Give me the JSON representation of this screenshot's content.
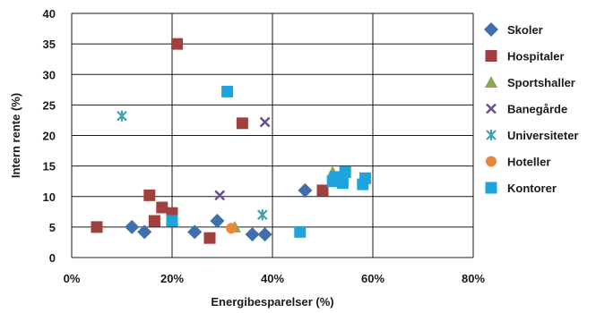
{
  "chart_data": {
    "type": "scatter",
    "xlabel": "Energibesparelser (%)",
    "ylabel": "Intern rente (%)",
    "xlim": [
      0,
      80
    ],
    "ylim": [
      0,
      40
    ],
    "x_ticks": [
      "0%",
      "20%",
      "40%",
      "60%",
      "80%"
    ],
    "y_ticks": [
      "0",
      "5",
      "10",
      "15",
      "20",
      "25",
      "30",
      "35",
      "40"
    ],
    "grid": true,
    "legend_position": "right",
    "series": [
      {
        "name": "Skoler",
        "marker": "diamond",
        "color": "#3f6fae",
        "points": [
          [
            12,
            5
          ],
          [
            14.5,
            4.2
          ],
          [
            24.5,
            4.2
          ],
          [
            29,
            6
          ],
          [
            36,
            3.8
          ],
          [
            38.5,
            3.8
          ],
          [
            46.5,
            11
          ]
        ]
      },
      {
        "name": "Hospitaler",
        "marker": "square",
        "color": "#a0413f",
        "points": [
          [
            5,
            5
          ],
          [
            15.5,
            10.2
          ],
          [
            16.5,
            6
          ],
          [
            18,
            8.2
          ],
          [
            20,
            7.3
          ],
          [
            21,
            35
          ],
          [
            27.5,
            3.2
          ],
          [
            34,
            22
          ],
          [
            50,
            11
          ]
        ]
      },
      {
        "name": "Sportshaller",
        "marker": "triangle",
        "color": "#8aa654",
        "points": [
          [
            32.5,
            5
          ],
          [
            52,
            14
          ]
        ]
      },
      {
        "name": "Banegårde",
        "marker": "x",
        "color": "#6b4f91",
        "points": [
          [
            29.5,
            10.2
          ],
          [
            38.5,
            22.2
          ]
        ]
      },
      {
        "name": "Universiteter",
        "marker": "asterisk",
        "color": "#3ba2ad",
        "points": [
          [
            10,
            23.2
          ],
          [
            38,
            7
          ]
        ]
      },
      {
        "name": "Hoteller",
        "marker": "circle",
        "color": "#e8893a",
        "points": [
          [
            31.8,
            4.8
          ]
        ]
      },
      {
        "name": "Kontorer",
        "marker": "square",
        "color": "#1ea3dc",
        "points": [
          [
            20,
            6
          ],
          [
            31,
            27.2
          ],
          [
            45.5,
            4.2
          ],
          [
            52,
            12.5
          ],
          [
            52.5,
            13.2
          ],
          [
            54,
            12.2
          ],
          [
            54.5,
            14
          ],
          [
            58,
            12
          ],
          [
            58.5,
            13
          ]
        ]
      }
    ]
  }
}
